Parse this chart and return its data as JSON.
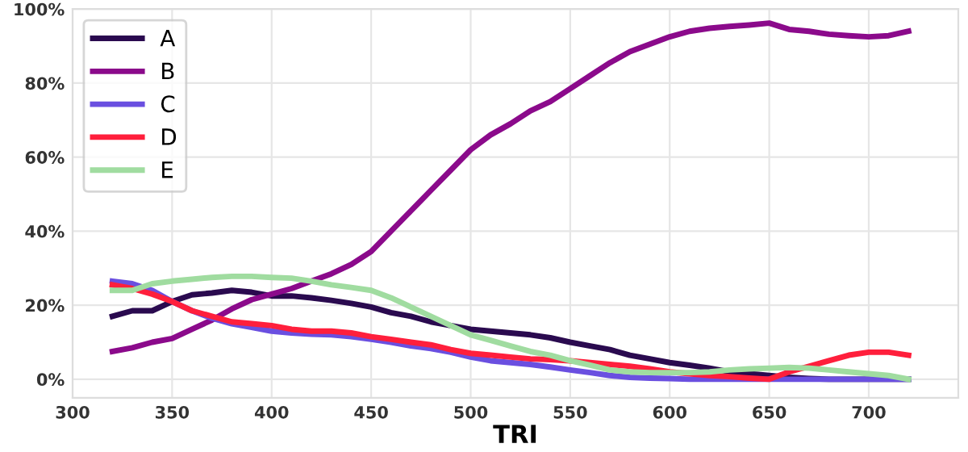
{
  "chart_data": {
    "type": "line",
    "xlabel": "TRI",
    "x": [
      320,
      330,
      340,
      350,
      360,
      370,
      380,
      390,
      400,
      410,
      420,
      430,
      440,
      450,
      460,
      470,
      480,
      490,
      500,
      510,
      520,
      530,
      540,
      550,
      560,
      570,
      580,
      590,
      600,
      610,
      620,
      630,
      640,
      650,
      660,
      670,
      680,
      690,
      700,
      710,
      720
    ],
    "series": [
      {
        "name": "A",
        "color": "#2a0a4f",
        "values": [
          17,
          18.5,
          18.5,
          21,
          22.8,
          23.3,
          24,
          23.5,
          22.5,
          22.5,
          22,
          21.3,
          20.5,
          19.5,
          18,
          17,
          15.5,
          14.5,
          13.5,
          13,
          12.5,
          12,
          11.2,
          10,
          9,
          8,
          6.5,
          5.5,
          4.5,
          3.8,
          3,
          2,
          1.5,
          1,
          0.5,
          0.2,
          0,
          0,
          0,
          0,
          0
        ]
      },
      {
        "name": "B",
        "color": "#8b0a8b",
        "values": [
          7.5,
          8.5,
          10,
          11,
          13.5,
          16,
          19,
          21.5,
          23,
          24.5,
          26.5,
          28.5,
          31,
          34.5,
          40,
          45.5,
          51,
          56.5,
          62,
          66,
          69,
          72.5,
          75,
          78.5,
          82,
          85.5,
          88.5,
          90.5,
          92.5,
          94,
          94.8,
          95.3,
          95.7,
          96.2,
          94.5,
          94,
          93.2,
          92.8,
          92.5,
          92.8,
          94
        ]
      },
      {
        "name": "C",
        "color": "#6a4fe0",
        "values": [
          26.5,
          25.8,
          24,
          21,
          18.5,
          16.5,
          15,
          14,
          13,
          12.5,
          12.2,
          12,
          11.5,
          10.8,
          10,
          9,
          8.3,
          7.3,
          6,
          5,
          4.5,
          4,
          3.3,
          2.5,
          1.8,
          1,
          0.5,
          0.3,
          0.2,
          0,
          0,
          0,
          0,
          0,
          0,
          0,
          0,
          0,
          0,
          0,
          0
        ]
      },
      {
        "name": "D",
        "color": "#ff1f3c",
        "values": [
          25.5,
          24.5,
          23,
          21,
          18.5,
          17,
          15.5,
          15,
          14.5,
          13.5,
          13,
          13,
          12.5,
          11.5,
          10.8,
          10,
          9.3,
          8,
          7,
          6.5,
          6,
          5.5,
          5.3,
          5,
          4.5,
          4,
          3.5,
          2.8,
          2,
          1.5,
          1,
          0.7,
          0.3,
          0,
          2,
          3.5,
          5,
          6.5,
          7.3,
          7.3,
          6.5
        ]
      },
      {
        "name": "E",
        "color": "#a0dca0",
        "values": [
          24,
          24,
          25.8,
          26.5,
          27,
          27.5,
          27.8,
          27.8,
          27.5,
          27.3,
          26.5,
          25.5,
          24.8,
          24,
          22,
          19.5,
          17,
          14.5,
          12,
          10.5,
          9,
          7.5,
          6.5,
          5,
          3.8,
          2.5,
          2,
          1.8,
          1.8,
          1.8,
          2,
          2.5,
          2.8,
          3,
          3.2,
          3,
          2.5,
          2,
          1.5,
          1,
          0
        ]
      }
    ],
    "xlim": [
      300,
      745
    ],
    "xticks": [
      300,
      350,
      400,
      450,
      500,
      550,
      600,
      650,
      700
    ],
    "ylim": [
      -5,
      100
    ],
    "yticks": [
      {
        "value": 0,
        "label": "0%"
      },
      {
        "value": 20,
        "label": "20%"
      },
      {
        "value": 40,
        "label": "40%"
      },
      {
        "value": 60,
        "label": "60%"
      },
      {
        "value": 80,
        "label": "80%"
      },
      {
        "value": 100,
        "label": "100%"
      }
    ],
    "grid": true,
    "legend": "top left",
    "marker": "none",
    "line_style": "solid"
  }
}
